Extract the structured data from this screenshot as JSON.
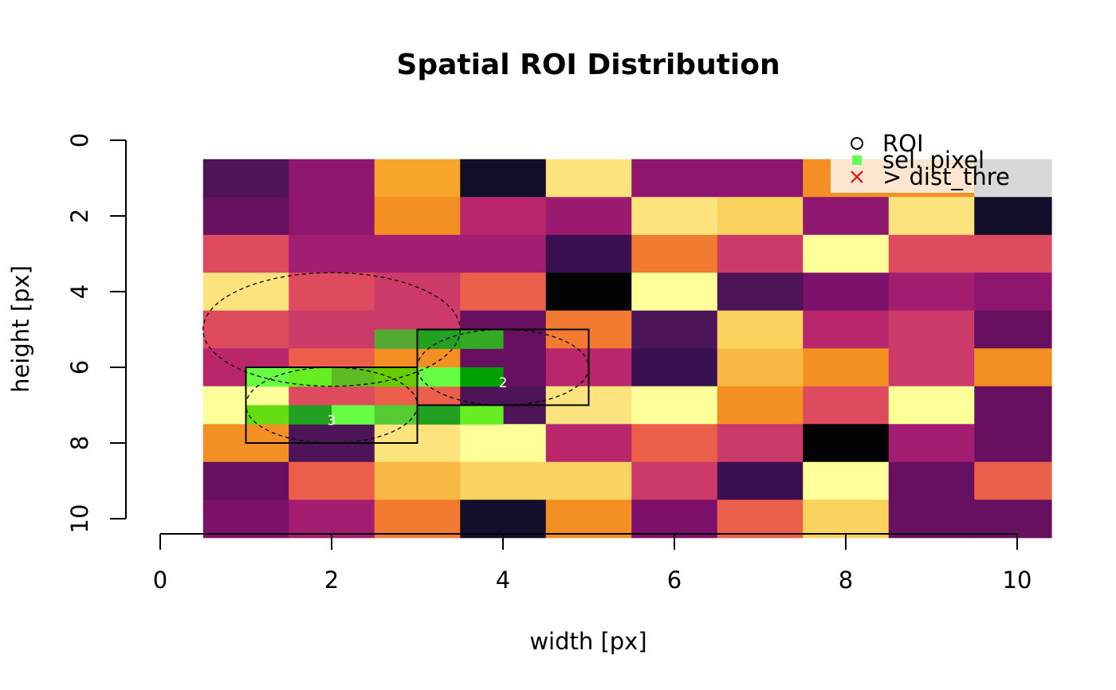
{
  "chart_data": {
    "type": "heatmap",
    "title": "Spatial ROI Distribution",
    "xlabel": "width [px]",
    "ylabel": "height [px]",
    "xlim": [
      0,
      10.4
    ],
    "ylim": [
      10,
      0
    ],
    "x_ticks": [
      "0",
      "2",
      "4",
      "6",
      "8",
      "10"
    ],
    "y_ticks": [
      "0",
      "2",
      "4",
      "6",
      "8",
      "10"
    ],
    "cells": {
      "x_start": 0.5,
      "y_start": 0.5,
      "size": 1,
      "colors": [
        [
          "#4E1458",
          "#8E166E",
          "#F7A52B",
          "#120D2B",
          "#FCE37E",
          "#8E166E",
          "#8E166E",
          "#F48F24",
          "#F48F24",
          "#D8D8D8"
        ],
        [
          "#66105F",
          "#8E166E",
          "#F48F24",
          "#B9266C",
          "#9C1B6E",
          "#FCE37E",
          "#FAD35E",
          "#8E166E",
          "#FCE37E",
          "#120D2B"
        ],
        [
          "#DE4A5E",
          "#A31E71",
          "#A31E71",
          "#A31E71",
          "#3B1050",
          "#F37A31",
          "#CC3A6A",
          "#FFFF99",
          "#DE4A5E",
          "#DE4A5E"
        ],
        [
          "#FCE37E",
          "#DE4A5E",
          "#CC3A6A",
          "#EC5F4B",
          "#030303",
          "#FFFF99",
          "#4E1458",
          "#7D106B",
          "#A31E71",
          "#8E166E"
        ],
        [
          "#DE4A5E",
          "#CC3A6A",
          "#CC3A6A",
          "#66105F",
          "#F37A31",
          "#4E1458",
          "#FAD35E",
          "#B9266C",
          "#CC3A6A",
          "#66105F"
        ],
        [
          "#B9266C",
          "#EC5F4B",
          "#F48F24",
          "#66105F",
          "#B9266C",
          "#3B1050",
          "#F7B944",
          "#F48F24",
          "#CC3A6A",
          "#F48F24"
        ],
        [
          "#FFFF99",
          "#DE4A5E",
          "#EC5F4B",
          "#4E1458",
          "#FCE37E",
          "#FFFF99",
          "#F48F24",
          "#DE4A5E",
          "#FFFF99",
          "#66105F"
        ],
        [
          "#F48F24",
          "#4E1458",
          "#FCE37E",
          "#FFFF99",
          "#B9266C",
          "#EC5F4B",
          "#CC3A6A",
          "#030303",
          "#A31E71",
          "#66105F"
        ],
        [
          "#66105F",
          "#EC5F4B",
          "#F7B944",
          "#FAD35E",
          "#FAD35E",
          "#CC3A6A",
          "#3B1050",
          "#FFFF99",
          "#66105F",
          "#EC5F4B"
        ],
        [
          "#7D106B",
          "#A31E71",
          "#F37A31",
          "#120D2B",
          "#F48F24",
          "#7D106B",
          "#EC5F4B",
          "#FAD35E",
          "#66105F",
          "#66105F"
        ]
      ]
    },
    "selected_pixels": [
      {
        "col": 1,
        "row": 6,
        "color": "#66FF44"
      },
      {
        "col": 2,
        "row": 6,
        "color": "#66EE22"
      },
      {
        "col": 3,
        "row": 6,
        "color": "#5EBB22"
      },
      {
        "col": 1,
        "row": 7,
        "color": "#66DD11"
      },
      {
        "col": 2,
        "row": 7,
        "color": "#22A022"
      },
      {
        "col": 3,
        "row": 7,
        "color": "#66FF44"
      },
      {
        "col": 4,
        "row": 5,
        "color": "#55AA33"
      },
      {
        "col": 5,
        "row": 5,
        "color": "#22A022"
      },
      {
        "col": 6,
        "row": 5,
        "color": "#33AA22"
      },
      {
        "col": 4,
        "row": 6,
        "color": "#66CC00"
      },
      {
        "col": 5,
        "row": 6,
        "color": "#66FF44"
      },
      {
        "col": 6,
        "row": 6,
        "color": "#00A000"
      },
      {
        "col": 4,
        "row": 7,
        "color": "#55CC33"
      },
      {
        "col": 5,
        "row": 7,
        "color": "#22A022"
      },
      {
        "col": 6,
        "row": 7,
        "color": "#66EE22"
      }
    ],
    "roi_boxes": [
      {
        "x0": 1,
        "y0": 6,
        "x1": 3,
        "y1": 8
      },
      {
        "x0": 3,
        "y0": 5,
        "x1": 5,
        "y1": 7
      }
    ],
    "roi_ellipses": [
      {
        "cx": 2,
        "cy": 5,
        "rx": 1.5,
        "ry": 1.5
      },
      {
        "cx": 4,
        "cy": 6,
        "rx": 1,
        "ry": 1
      },
      {
        "cx": 2,
        "cy": 7,
        "rx": 1,
        "ry": 1
      }
    ],
    "roi_labels": [
      {
        "x": 4,
        "y": 6.4,
        "text": "2"
      },
      {
        "x": 2,
        "y": 7.4,
        "text": "3"
      }
    ],
    "legend": {
      "position": "top-right",
      "items": [
        {
          "symbol": "circle",
          "color": "#000000",
          "label": "ROI"
        },
        {
          "symbol": "square",
          "color": "#66FF55",
          "label": "sel. pixel"
        },
        {
          "symbol": "cross",
          "color": "#FF0000",
          "label": "> dist_thre"
        }
      ]
    }
  }
}
